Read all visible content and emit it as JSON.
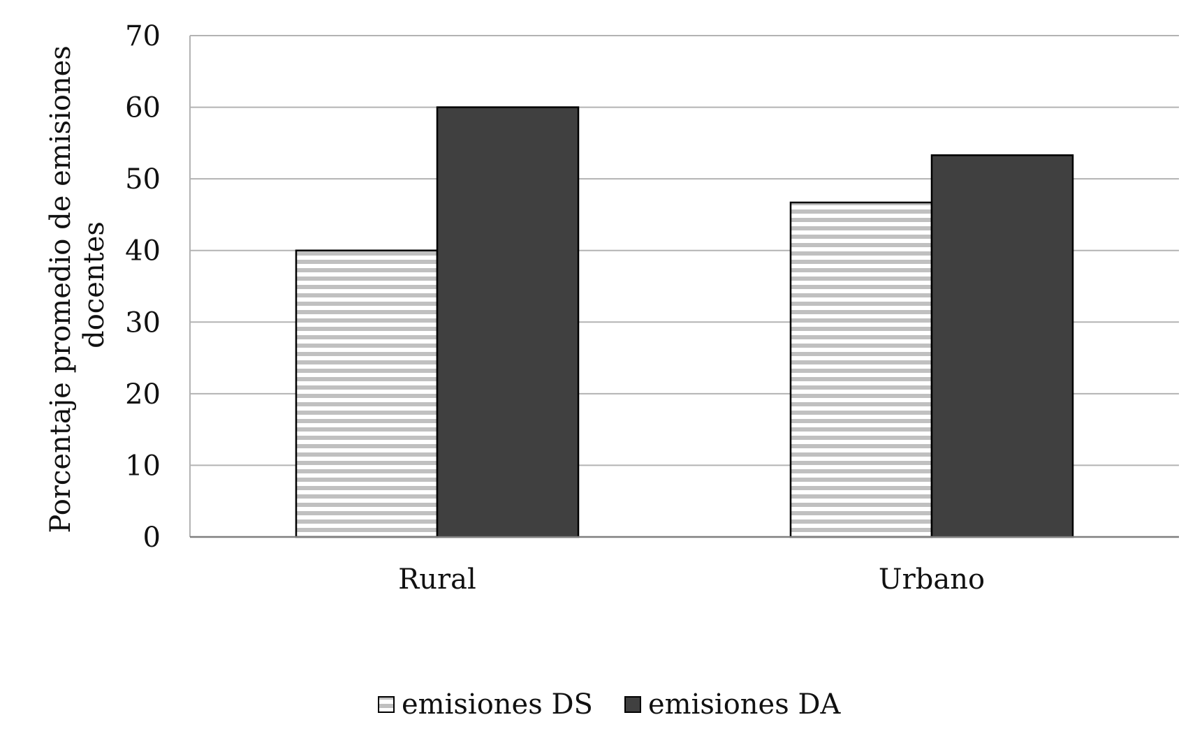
{
  "chart_data": {
    "type": "bar",
    "categories": [
      "Rural",
      "Urbano"
    ],
    "series": [
      {
        "name": "emisiones DS",
        "values": [
          40,
          46.7
        ],
        "pattern": "horizontal-stripes",
        "color": "#c0c0c0"
      },
      {
        "name": "emisiones DA",
        "values": [
          60,
          53.3
        ],
        "color": "#404040"
      }
    ],
    "ylabel_lines": [
      "Porcentaje promedio de emisiones",
      "docentes"
    ],
    "xlabel": "",
    "ylim": [
      0,
      70
    ],
    "yticks": [
      0,
      10,
      20,
      30,
      40,
      50,
      60,
      70
    ],
    "grid": true,
    "legend_position": "bottom",
    "colors": {
      "gridline": "#b3b3b3",
      "axis": "#7f7f7f",
      "bar_outline": "#000000"
    }
  }
}
